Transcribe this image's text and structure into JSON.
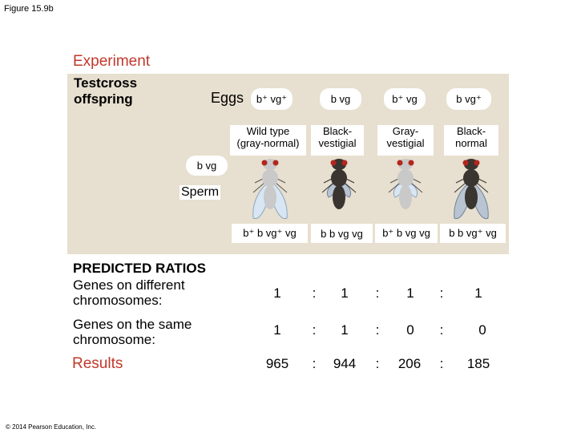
{
  "figure_label": "Figure 15.9b",
  "experiment_title": "Experiment",
  "testcross_line1": "Testcross",
  "testcross_line2": "offspring",
  "eggs_label": "Eggs",
  "egg_gametes": [
    "b⁺ vg⁺",
    "b vg",
    "b⁺ vg",
    "b vg⁺"
  ],
  "phenotypes": [
    [
      "Wild type",
      "(gray-normal)"
    ],
    [
      "Black-",
      "vestigial"
    ],
    [
      "Gray-",
      "vestigial"
    ],
    [
      "Black-",
      "normal"
    ]
  ],
  "sperm_gamete": "b vg",
  "sperm_label": "Sperm",
  "offspring_genotypes": [
    "b⁺ b vg⁺ vg",
    "b b vg vg",
    "b⁺ b vg vg",
    "b b vg⁺ vg"
  ],
  "fly_types": [
    {
      "name": "gray-normal",
      "body": "#c9c9c9",
      "wings": "normal"
    },
    {
      "name": "black-vestigial",
      "body": "#3a3530",
      "wings": "vestigial"
    },
    {
      "name": "gray-vestigial",
      "body": "#c9c9c9",
      "wings": "vestigial"
    },
    {
      "name": "black-normal",
      "body": "#3a3530",
      "wings": "normal"
    }
  ],
  "predicted_title": "PREDICTED RATIOS",
  "diff_label_line1": "Genes on different",
  "diff_label_line2": "chromosomes:",
  "same_label_line1": "Genes on the same",
  "same_label_line2": "chromosome:",
  "results_label": "Results",
  "separator": ":",
  "ratio_rows": [
    [
      "1",
      "1",
      "1",
      "1"
    ],
    [
      "1",
      "1",
      "0",
      "0"
    ],
    [
      "965",
      "944",
      "206",
      "185"
    ]
  ],
  "copyright": "© 2014 Pearson Education, Inc.",
  "colors": {
    "accent": "#c0392b",
    "panel": "#e7dfcf"
  }
}
